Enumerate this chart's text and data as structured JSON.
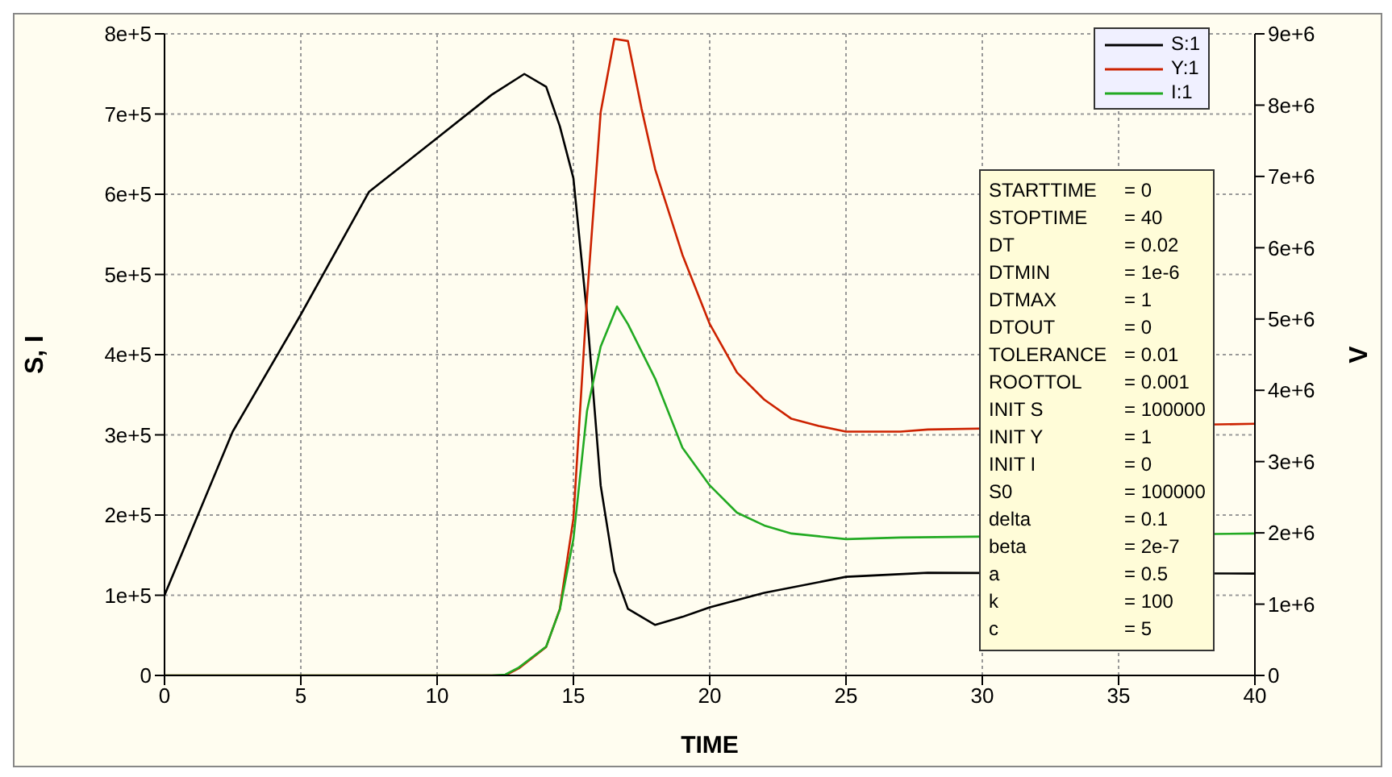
{
  "chart_data": {
    "type": "line",
    "xlabel": "TIME",
    "ylabel": "S, I",
    "y2label": "V",
    "xlim": [
      0,
      40
    ],
    "xticks": [
      0,
      5,
      10,
      15,
      20,
      25,
      30,
      35,
      40
    ],
    "ylim": [
      0,
      800000
    ],
    "yticks": [
      0,
      {
        "value": 100000,
        "label": "1e+5"
      },
      {
        "value": 200000,
        "label": "2e+5"
      },
      {
        "value": 300000,
        "label": "3e+5"
      },
      {
        "value": 400000,
        "label": "4e+5"
      },
      {
        "value": 500000,
        "label": "5e+5"
      },
      {
        "value": 600000,
        "label": "6e+5"
      },
      {
        "value": 700000,
        "label": "7e+5"
      },
      {
        "value": 800000,
        "label": "8e+5"
      }
    ],
    "y2lim": [
      0,
      9000000
    ],
    "y2ticks": [
      0,
      {
        "value": 1000000,
        "label": "1e+6"
      },
      {
        "value": 2000000,
        "label": "2e+6"
      },
      {
        "value": 3000000,
        "label": "3e+6"
      },
      {
        "value": 4000000,
        "label": "4e+6"
      },
      {
        "value": 5000000,
        "label": "5e+6"
      },
      {
        "value": 6000000,
        "label": "6e+6"
      },
      {
        "value": 7000000,
        "label": "7e+6"
      },
      {
        "value": 8000000,
        "label": "8e+6"
      },
      {
        "value": 9000000,
        "label": "9e+6"
      }
    ],
    "grid": true,
    "legend": "top right",
    "marker": "none",
    "line_style": "solid",
    "series": [
      {
        "name": "S:1",
        "color": "#000000",
        "x": [
          0,
          2.5,
          5,
          7.5,
          10,
          12,
          13.2,
          14,
          14.5,
          15,
          15.5,
          16,
          16.5,
          17,
          18,
          19,
          20,
          22,
          25,
          28,
          40
        ],
        "values": [
          100000,
          304000,
          450000,
          603000,
          670000,
          724000,
          750000,
          734000,
          685000,
          620000,
          450000,
          237000,
          130000,
          83000,
          63000,
          73000,
          85000,
          103000,
          123000,
          128000,
          127000
        ]
      },
      {
        "name": "Y:1",
        "color": "#cc2200",
        "axis": "y2",
        "x": [
          0,
          12,
          12.5,
          13,
          14,
          14.5,
          15,
          15.5,
          16,
          16.5,
          17,
          17.5,
          18,
          19,
          20,
          21,
          22,
          23,
          24,
          25,
          27,
          28,
          40
        ],
        "values": [
          0,
          0,
          0,
          100000,
          400000,
          930000,
          2200000,
          5300000,
          7900000,
          8930000,
          8900000,
          7950000,
          7100000,
          5900000,
          4930000,
          4250000,
          3870000,
          3600000,
          3500000,
          3420000,
          3420000,
          3450000,
          3530000
        ]
      },
      {
        "name": "I:1",
        "color": "#22aa22",
        "x": [
          0,
          12,
          12.5,
          13,
          14,
          14.5,
          15,
          15.5,
          16,
          16.6,
          17,
          18,
          19,
          20,
          21,
          22,
          23,
          25,
          27,
          40
        ],
        "values": [
          0,
          0,
          1000,
          10000,
          36000,
          82000,
          170000,
          330000,
          410000,
          460000,
          438000,
          370000,
          284000,
          237000,
          203000,
          187000,
          177000,
          170000,
          172000,
          177000
        ]
      }
    ],
    "annotations": [
      "STARTTIME = 0",
      "STOPTIME = 40",
      "DT = 0.02",
      "DTMIN = 1e-6",
      "DTMAX = 1",
      "DTOUT = 0",
      "TOLERANCE = 0.01",
      "ROOTTOL = 0.001",
      "INIT S = 100000",
      "INIT Y = 1",
      "INIT I = 0",
      "S0 = 100000",
      "delta = 0.1",
      "beta = 2e-7",
      "a = 0.5",
      "k = 100",
      "c = 5"
    ]
  }
}
